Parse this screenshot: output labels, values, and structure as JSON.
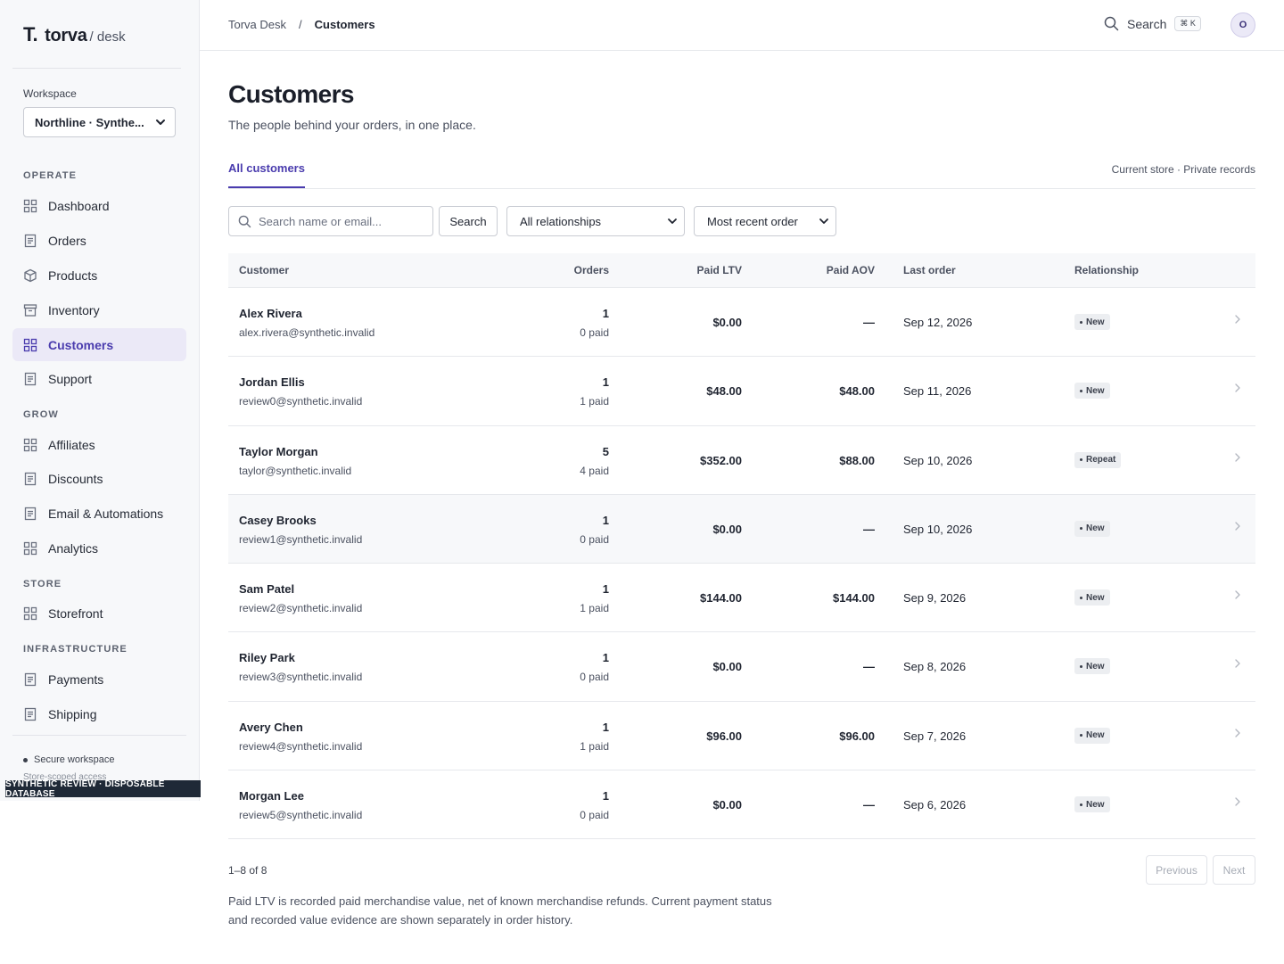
{
  "brand": {
    "mark": "T.",
    "name": "torva",
    "sub": "/ desk"
  },
  "workspace": {
    "label": "Workspace",
    "selected": "Northline · Synthe..."
  },
  "nav": {
    "sections": {
      "operate": "OPERATE",
      "grow": "GROW",
      "store": "STORE",
      "infrastructure": "INFRASTRUCTURE"
    },
    "items": [
      {
        "label": "Dashboard",
        "icon": "grid-icon"
      },
      {
        "label": "Orders",
        "icon": "document-icon"
      },
      {
        "label": "Products",
        "icon": "box-icon"
      },
      {
        "label": "Inventory",
        "icon": "archive-icon"
      },
      {
        "label": "Customers",
        "icon": "grid-icon",
        "active": true
      },
      {
        "label": "Support",
        "icon": "document-icon"
      },
      {
        "label": "Affiliates",
        "icon": "grid-icon"
      },
      {
        "label": "Discounts",
        "icon": "document-icon"
      },
      {
        "label": "Email & Automations",
        "icon": "document-icon"
      },
      {
        "label": "Analytics",
        "icon": "grid-icon"
      },
      {
        "label": "Storefront",
        "icon": "grid-icon"
      },
      {
        "label": "Payments",
        "icon": "document-icon"
      },
      {
        "label": "Shipping",
        "icon": "document-icon"
      }
    ]
  },
  "sidebar_footer": {
    "secure": "Secure workspace",
    "scoped": "Store-scoped access",
    "banner": "SYNTHETIC REVIEW · DISPOSABLE DATABASE"
  },
  "header": {
    "breadcrumb_root": "Torva Desk",
    "breadcrumb_sep": "/",
    "breadcrumb_current": "Customers",
    "search_label": "Search",
    "search_shortcut": "⌘ K",
    "avatar_initial": "O"
  },
  "page": {
    "title": "Customers",
    "subtitle": "The people behind your orders, in one place.",
    "tab": "All customers",
    "tab_meta": "Current store · Private records"
  },
  "filters": {
    "search_placeholder": "Search name or email...",
    "search_button": "Search",
    "relationship": "All relationships",
    "sort": "Most recent order"
  },
  "table": {
    "columns": {
      "customer": "Customer",
      "orders": "Orders",
      "ltv": "Paid LTV",
      "aov": "Paid AOV",
      "last": "Last order",
      "relationship": "Relationship"
    },
    "rows": [
      {
        "name": "Alex Rivera",
        "email": "alex.rivera@synthetic.invalid",
        "orders": "1",
        "paid": "0 paid",
        "ltv": "$0.00",
        "aov": "—",
        "last": "Sep 12, 2026",
        "rel": "New"
      },
      {
        "name": "Jordan Ellis",
        "email": "review0@synthetic.invalid",
        "orders": "1",
        "paid": "1 paid",
        "ltv": "$48.00",
        "aov": "$48.00",
        "last": "Sep 11, 2026",
        "rel": "New"
      },
      {
        "name": "Taylor Morgan",
        "email": "taylor@synthetic.invalid",
        "orders": "5",
        "paid": "4 paid",
        "ltv": "$352.00",
        "aov": "$88.00",
        "last": "Sep 10, 2026",
        "rel": "Repeat"
      },
      {
        "name": "Casey Brooks",
        "email": "review1@synthetic.invalid",
        "orders": "1",
        "paid": "0 paid",
        "ltv": "$0.00",
        "aov": "—",
        "last": "Sep 10, 2026",
        "rel": "New"
      },
      {
        "name": "Sam Patel",
        "email": "review2@synthetic.invalid",
        "orders": "1",
        "paid": "1 paid",
        "ltv": "$144.00",
        "aov": "$144.00",
        "last": "Sep 9, 2026",
        "rel": "New"
      },
      {
        "name": "Riley Park",
        "email": "review3@synthetic.invalid",
        "orders": "1",
        "paid": "0 paid",
        "ltv": "$0.00",
        "aov": "—",
        "last": "Sep 8, 2026",
        "rel": "New"
      },
      {
        "name": "Avery Chen",
        "email": "review4@synthetic.invalid",
        "orders": "1",
        "paid": "1 paid",
        "ltv": "$96.00",
        "aov": "$96.00",
        "last": "Sep 7, 2026",
        "rel": "New"
      },
      {
        "name": "Morgan Lee",
        "email": "review5@synthetic.invalid",
        "orders": "1",
        "paid": "0 paid",
        "ltv": "$0.00",
        "aov": "—",
        "last": "Sep 6, 2026",
        "rel": "New"
      }
    ]
  },
  "pagination": {
    "count": "1–8 of 8",
    "previous": "Previous",
    "next": "Next"
  },
  "footnote": "Paid LTV is recorded paid merchandise value, net of known merchandise refunds. Current payment status and recorded value evidence are shown separately in order history.",
  "colors": {
    "accent": "#4a3cae",
    "active_bg": "#ebe9f7",
    "banner": "#1f2937"
  }
}
